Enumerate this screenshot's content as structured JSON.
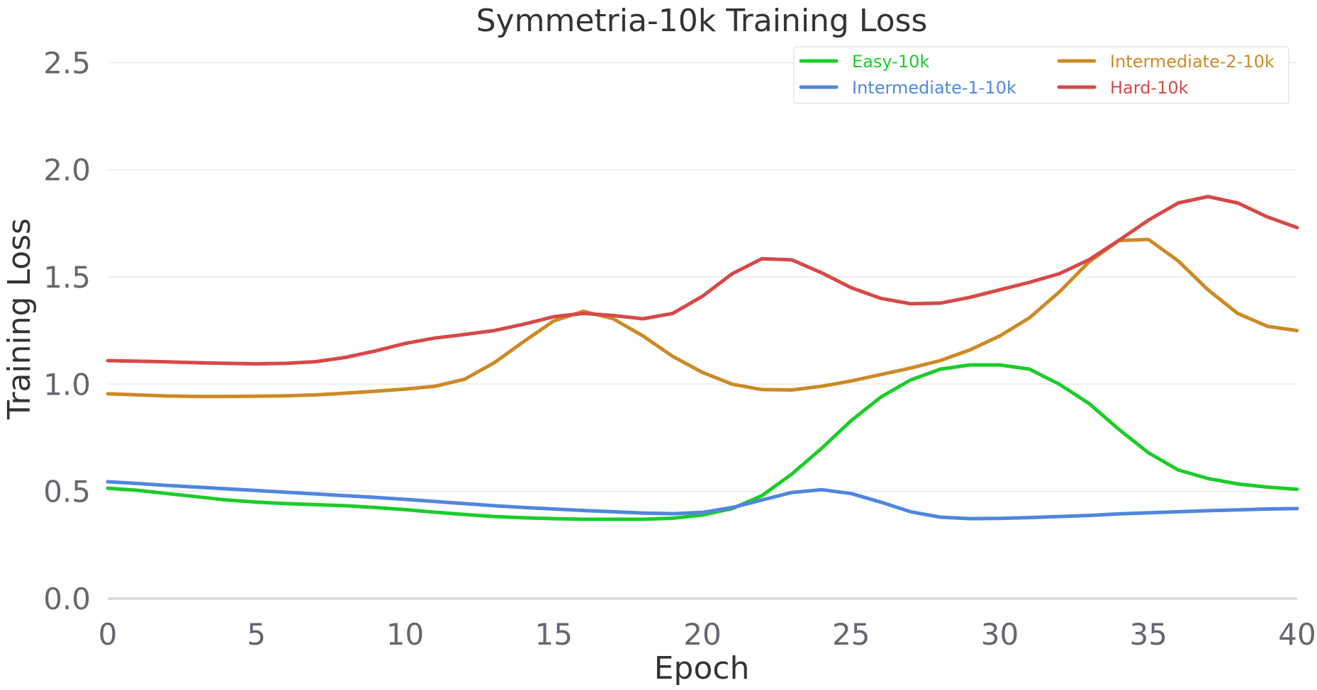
{
  "chart_data": {
    "type": "line",
    "title": "Symmetria-10k Training Loss",
    "xlabel": "Epoch",
    "ylabel": "Training Loss",
    "xlim": [
      0,
      40
    ],
    "ylim": [
      0,
      2.6
    ],
    "x_ticks": [
      0,
      5,
      10,
      15,
      20,
      25,
      30,
      35,
      40
    ],
    "y_ticks": [
      0.0,
      0.5,
      1.0,
      1.5,
      2.0,
      2.5
    ],
    "y_tick_labels": [
      "0.0",
      "0.5",
      "1.0",
      "1.5",
      "2.0",
      "2.5"
    ],
    "grid": "horizontal",
    "legend_position": "top-right",
    "x": [
      0,
      1,
      2,
      3,
      4,
      5,
      6,
      7,
      8,
      9,
      10,
      11,
      12,
      13,
      14,
      15,
      16,
      17,
      18,
      19,
      20,
      21,
      22,
      23,
      24,
      25,
      26,
      27,
      28,
      29,
      30,
      31,
      32,
      33,
      34,
      35,
      36,
      37,
      38,
      39,
      40
    ],
    "series": [
      {
        "name": "Easy-10k",
        "color": "#1ccc2a",
        "values": [
          0.515,
          0.505,
          0.49,
          0.475,
          0.46,
          0.45,
          0.443,
          0.438,
          0.433,
          0.425,
          0.415,
          0.403,
          0.392,
          0.383,
          0.377,
          0.373,
          0.37,
          0.37,
          0.37,
          0.375,
          0.39,
          0.42,
          0.48,
          0.58,
          0.7,
          0.83,
          0.94,
          1.02,
          1.07,
          1.09,
          1.09,
          1.07,
          1.0,
          0.91,
          0.79,
          0.68,
          0.6,
          0.56,
          0.535,
          0.52,
          0.51
        ]
      },
      {
        "name": "Intermediate-1-10k",
        "color": "#4f86de",
        "values": [
          0.545,
          0.537,
          0.528,
          0.52,
          0.512,
          0.504,
          0.496,
          0.488,
          0.48,
          0.472,
          0.463,
          0.453,
          0.443,
          0.433,
          0.425,
          0.418,
          0.411,
          0.405,
          0.399,
          0.396,
          0.402,
          0.425,
          0.46,
          0.495,
          0.508,
          0.49,
          0.45,
          0.405,
          0.38,
          0.373,
          0.374,
          0.378,
          0.383,
          0.388,
          0.395,
          0.4,
          0.405,
          0.41,
          0.414,
          0.418,
          0.42
        ]
      },
      {
        "name": "Intermediate-2-10k",
        "color": "#cc8a25",
        "values": [
          0.955,
          0.95,
          0.945,
          0.943,
          0.943,
          0.944,
          0.946,
          0.95,
          0.958,
          0.967,
          0.977,
          0.99,
          1.023,
          1.1,
          1.2,
          1.295,
          1.34,
          1.305,
          1.225,
          1.13,
          1.055,
          1.0,
          0.975,
          0.973,
          0.99,
          1.015,
          1.045,
          1.075,
          1.11,
          1.16,
          1.225,
          1.31,
          1.43,
          1.57,
          1.67,
          1.675,
          1.575,
          1.44,
          1.33,
          1.27,
          1.25
        ]
      },
      {
        "name": "Hard-10k",
        "color": "#d84848",
        "values": [
          1.11,
          1.107,
          1.104,
          1.1,
          1.097,
          1.095,
          1.097,
          1.105,
          1.125,
          1.155,
          1.19,
          1.215,
          1.232,
          1.25,
          1.28,
          1.315,
          1.33,
          1.32,
          1.305,
          1.33,
          1.41,
          1.515,
          1.585,
          1.58,
          1.52,
          1.45,
          1.4,
          1.375,
          1.378,
          1.405,
          1.44,
          1.475,
          1.515,
          1.58,
          1.67,
          1.765,
          1.845,
          1.875,
          1.845,
          1.78,
          1.73
        ]
      }
    ]
  }
}
